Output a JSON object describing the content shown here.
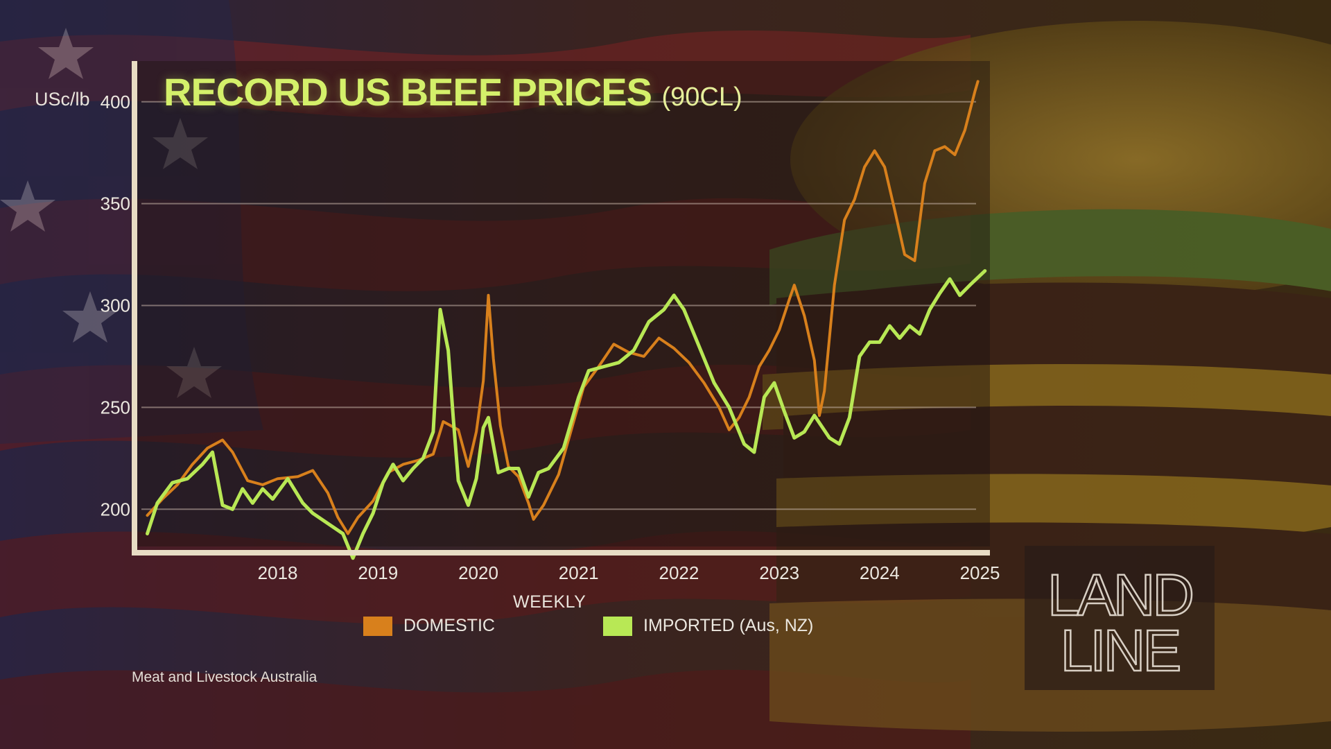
{
  "chart_data": {
    "type": "line",
    "title": "RECORD US BEEF PRICES",
    "subtitle": "(90CL)",
    "ylabel": "USc/lb",
    "xlabel": "WEEKLY",
    "ylim": [
      180,
      420
    ],
    "xlim": [
      2017.1,
      2025.6
    ],
    "y_ticks": [
      200,
      250,
      300,
      350,
      400
    ],
    "x_ticks": [
      2018,
      2019,
      2020,
      2021,
      2022,
      2023,
      2024,
      2025
    ],
    "x_tick_labels": [
      "2018",
      "2019",
      "2020",
      "2021",
      "2022",
      "2023",
      "2024",
      "2025"
    ],
    "grid": true,
    "legend_position": "bottom",
    "source": "Meat and Livestock Australia",
    "series": [
      {
        "name": "DOMESTIC",
        "color": "#d8801c",
        "points": [
          [
            2017.2,
            197
          ],
          [
            2017.35,
            205
          ],
          [
            2017.5,
            212
          ],
          [
            2017.65,
            222
          ],
          [
            2017.8,
            230
          ],
          [
            2017.95,
            234
          ],
          [
            2018.05,
            228
          ],
          [
            2018.2,
            214
          ],
          [
            2018.35,
            212
          ],
          [
            2018.5,
            215
          ],
          [
            2018.7,
            216
          ],
          [
            2018.85,
            219
          ],
          [
            2019.0,
            208
          ],
          [
            2019.1,
            196
          ],
          [
            2019.2,
            188
          ],
          [
            2019.3,
            196
          ],
          [
            2019.45,
            204
          ],
          [
            2019.6,
            218
          ],
          [
            2019.75,
            222
          ],
          [
            2019.9,
            224
          ],
          [
            2020.05,
            227
          ],
          [
            2020.15,
            243
          ],
          [
            2020.3,
            239
          ],
          [
            2020.4,
            221
          ],
          [
            2020.48,
            238
          ],
          [
            2020.55,
            263
          ],
          [
            2020.6,
            305
          ],
          [
            2020.65,
            274
          ],
          [
            2020.72,
            241
          ],
          [
            2020.8,
            221
          ],
          [
            2020.9,
            216
          ],
          [
            2021.0,
            203
          ],
          [
            2021.05,
            195
          ],
          [
            2021.15,
            202
          ],
          [
            2021.3,
            217
          ],
          [
            2021.45,
            243
          ],
          [
            2021.55,
            260
          ],
          [
            2021.7,
            270
          ],
          [
            2021.85,
            281
          ],
          [
            2022.0,
            277
          ],
          [
            2022.15,
            275
          ],
          [
            2022.3,
            284
          ],
          [
            2022.45,
            279
          ],
          [
            2022.6,
            272
          ],
          [
            2022.75,
            262
          ],
          [
            2022.9,
            250
          ],
          [
            2023.0,
            239
          ],
          [
            2023.1,
            245
          ],
          [
            2023.2,
            255
          ],
          [
            2023.3,
            270
          ],
          [
            2023.4,
            278
          ],
          [
            2023.5,
            288
          ],
          [
            2023.6,
            303
          ],
          [
            2023.65,
            310
          ],
          [
            2023.75,
            295
          ],
          [
            2023.85,
            273
          ],
          [
            2023.9,
            246
          ],
          [
            2023.95,
            258
          ],
          [
            2024.05,
            310
          ],
          [
            2024.15,
            342
          ],
          [
            2024.25,
            352
          ],
          [
            2024.35,
            368
          ],
          [
            2024.45,
            376
          ],
          [
            2024.55,
            368
          ],
          [
            2024.65,
            347
          ],
          [
            2024.75,
            325
          ],
          [
            2024.85,
            322
          ],
          [
            2024.95,
            360
          ],
          [
            2025.05,
            376
          ],
          [
            2025.15,
            378
          ],
          [
            2025.25,
            374
          ],
          [
            2025.35,
            386
          ],
          [
            2025.45,
            405
          ],
          [
            2025.48,
            410
          ]
        ]
      },
      {
        "name": "IMPORTED (Aus, NZ)",
        "color": "#b8e855",
        "points": [
          [
            2017.2,
            188
          ],
          [
            2017.3,
            203
          ],
          [
            2017.45,
            213
          ],
          [
            2017.6,
            215
          ],
          [
            2017.75,
            222
          ],
          [
            2017.85,
            228
          ],
          [
            2017.95,
            202
          ],
          [
            2018.05,
            200
          ],
          [
            2018.15,
            210
          ],
          [
            2018.25,
            203
          ],
          [
            2018.35,
            210
          ],
          [
            2018.45,
            205
          ],
          [
            2018.6,
            215
          ],
          [
            2018.75,
            203
          ],
          [
            2018.85,
            198
          ],
          [
            2019.0,
            193
          ],
          [
            2019.15,
            188
          ],
          [
            2019.25,
            176
          ],
          [
            2019.35,
            188
          ],
          [
            2019.45,
            198
          ],
          [
            2019.55,
            213
          ],
          [
            2019.65,
            222
          ],
          [
            2019.75,
            214
          ],
          [
            2019.85,
            220
          ],
          [
            2019.95,
            225
          ],
          [
            2020.05,
            238
          ],
          [
            2020.12,
            298
          ],
          [
            2020.2,
            278
          ],
          [
            2020.25,
            245
          ],
          [
            2020.3,
            214
          ],
          [
            2020.4,
            202
          ],
          [
            2020.48,
            215
          ],
          [
            2020.55,
            240
          ],
          [
            2020.6,
            245
          ],
          [
            2020.7,
            218
          ],
          [
            2020.8,
            220
          ],
          [
            2020.9,
            220
          ],
          [
            2021.0,
            206
          ],
          [
            2021.1,
            218
          ],
          [
            2021.2,
            220
          ],
          [
            2021.35,
            230
          ],
          [
            2021.5,
            255
          ],
          [
            2021.6,
            268
          ],
          [
            2021.75,
            270
          ],
          [
            2021.9,
            272
          ],
          [
            2022.05,
            278
          ],
          [
            2022.2,
            292
          ],
          [
            2022.35,
            298
          ],
          [
            2022.45,
            305
          ],
          [
            2022.55,
            298
          ],
          [
            2022.7,
            280
          ],
          [
            2022.85,
            262
          ],
          [
            2023.0,
            250
          ],
          [
            2023.15,
            232
          ],
          [
            2023.25,
            228
          ],
          [
            2023.35,
            255
          ],
          [
            2023.45,
            262
          ],
          [
            2023.55,
            248
          ],
          [
            2023.65,
            235
          ],
          [
            2023.75,
            238
          ],
          [
            2023.85,
            246
          ],
          [
            2024.0,
            235
          ],
          [
            2024.1,
            232
          ],
          [
            2024.2,
            245
          ],
          [
            2024.3,
            275
          ],
          [
            2024.4,
            282
          ],
          [
            2024.5,
            282
          ],
          [
            2024.6,
            290
          ],
          [
            2024.7,
            284
          ],
          [
            2024.8,
            290
          ],
          [
            2024.9,
            286
          ],
          [
            2025.0,
            298
          ],
          [
            2025.1,
            306
          ],
          [
            2025.2,
            313
          ],
          [
            2025.3,
            305
          ],
          [
            2025.4,
            310
          ],
          [
            2025.55,
            317
          ]
        ]
      }
    ]
  },
  "logo": {
    "line1": "LAND",
    "line2": "LINE"
  }
}
